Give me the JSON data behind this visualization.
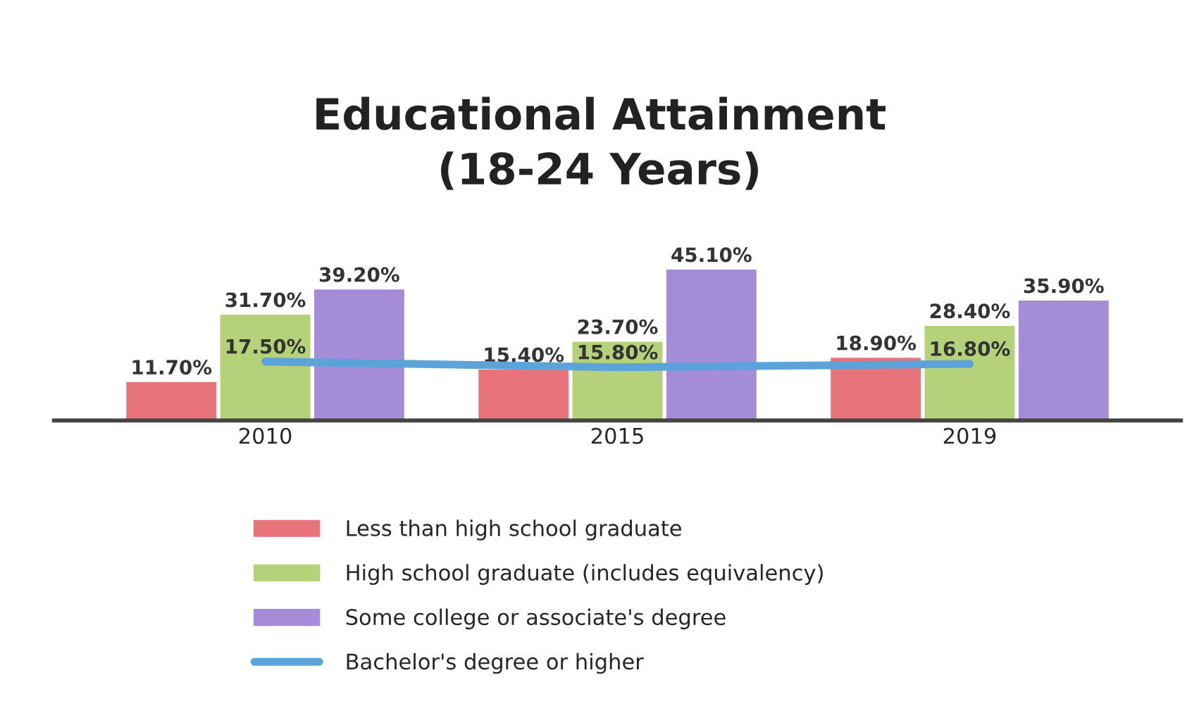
{
  "chart_data": {
    "type": "bar",
    "title": "Educational Attainment\n(18-24 Years)",
    "categories": [
      "2010",
      "2015",
      "2019"
    ],
    "series": [
      {
        "name": "Less than high school graduate",
        "color": "#e8737a",
        "values": [
          11.7,
          15.4,
          18.9
        ],
        "value_labels": [
          "11.70%",
          "15.40%",
          "18.90%"
        ]
      },
      {
        "name": "High school graduate (includes equivalency)",
        "color": "#b5d17a",
        "values": [
          31.7,
          23.7,
          28.4
        ],
        "value_labels": [
          "31.70%",
          "23.70%",
          "28.40%"
        ]
      },
      {
        "name": "Some college or associate's degree",
        "color": "#a58cd8",
        "values": [
          39.2,
          45.1,
          35.9
        ],
        "value_labels": [
          "39.20%",
          "45.10%",
          "35.90%"
        ]
      },
      {
        "name": "Bachelor's degree or higher",
        "type": "line",
        "color": "#5ba3d9",
        "values": [
          17.5,
          15.8,
          16.8
        ],
        "value_labels": [
          "17.50%",
          "15.80%",
          "16.80%"
        ]
      }
    ],
    "tick_labels": "x",
    "legend": "bottom",
    "grid": false
  }
}
